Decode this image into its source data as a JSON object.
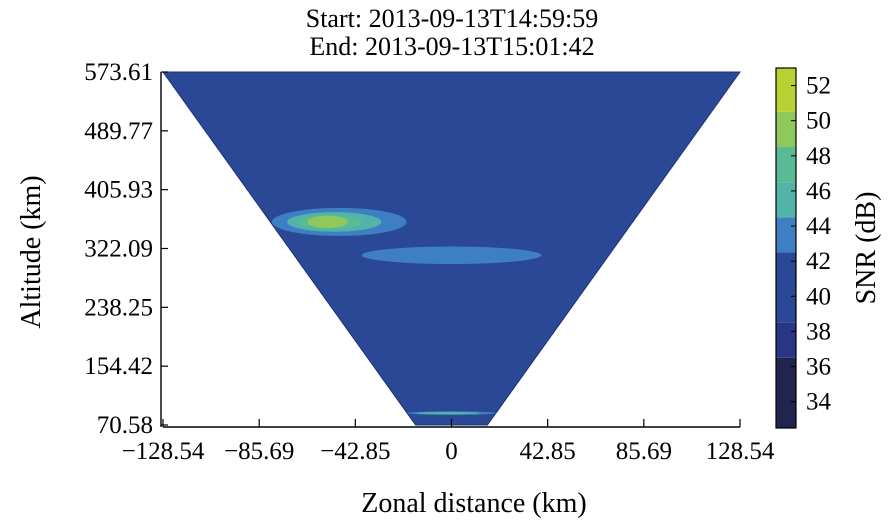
{
  "chart_data": {
    "type": "heatmap",
    "title": [
      "Start: 2013-09-13T14:59:59",
      "End: 2013-09-13T15:01:42"
    ],
    "xlabel": "Zonal distance (km)",
    "ylabel": "Altitude (km)",
    "xlim": [
      -128.54,
      128.54
    ],
    "ylim": [
      70.58,
      573.61
    ],
    "x_ticks": [
      -128.54,
      -85.69,
      -42.85,
      0,
      42.85,
      85.69,
      128.54
    ],
    "x_tick_labels": [
      "−128.54",
      "−85.69",
      "−42.85",
      "0",
      "42.85",
      "85.69",
      "128.54"
    ],
    "y_ticks": [
      70.58,
      154.42,
      238.25,
      322.09,
      405.93,
      489.77,
      573.61
    ],
    "y_tick_labels": [
      "70.58",
      "154.42",
      "238.25",
      "322.09",
      "405.93",
      "489.77",
      "573.61"
    ],
    "colorbar": {
      "label": "SNR (dB)",
      "range": [
        32.5,
        53
      ],
      "ticks": [
        34,
        36,
        38,
        40,
        42,
        44,
        46,
        48,
        50,
        52
      ],
      "levels": [
        {
          "min": 32.5,
          "max": 36.5,
          "color": "#21244e"
        },
        {
          "min": 36.5,
          "max": 38.5,
          "color": "#293585"
        },
        {
          "min": 38.5,
          "max": 42.5,
          "color": "#2a4895"
        },
        {
          "min": 42.5,
          "max": 44.5,
          "color": "#3d7fc2"
        },
        {
          "min": 44.5,
          "max": 46.5,
          "color": "#52b4a8"
        },
        {
          "min": 46.5,
          "max": 48.5,
          "color": "#58bb96"
        },
        {
          "min": 48.5,
          "max": 50.5,
          "color": "#8fc85b"
        },
        {
          "min": 50.5,
          "max": 53,
          "color": "#b9d233"
        }
      ]
    },
    "background_snr": 40,
    "data_region": "cone, apex near 70.58 km at x = 0, opening to the full x range at 573.61 km",
    "features": [
      {
        "x_range": [
          -80,
          -20
        ],
        "y_range": [
          340,
          380
        ],
        "peak_snr": 50
      },
      {
        "x_range": [
          -40,
          40
        ],
        "y_range": [
          300,
          325
        ],
        "peak_snr": 45
      },
      {
        "x_range": [
          -20,
          20
        ],
        "y_range": [
          85,
          90
        ],
        "peak_snr": 47
      }
    ]
  }
}
